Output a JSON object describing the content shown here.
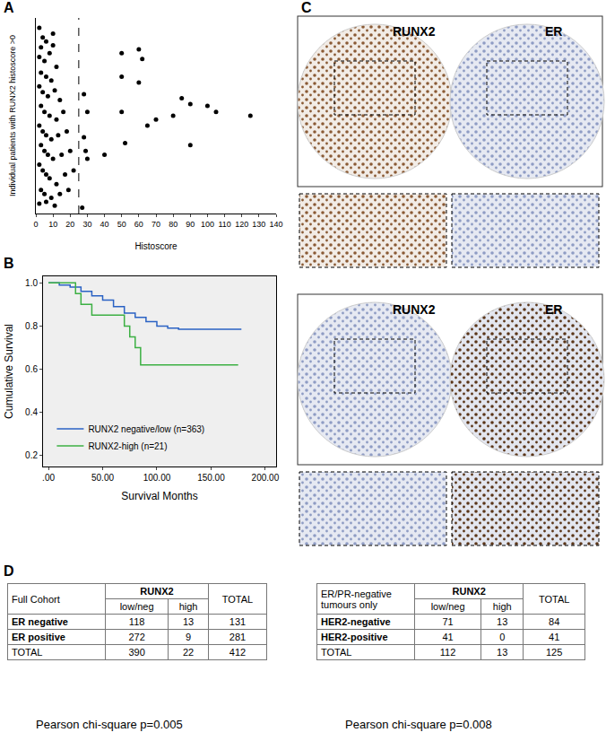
{
  "chart_data": [
    {
      "panel": "A",
      "type": "scatter",
      "x_label": "Histoscore",
      "y_label": "Individual patients with RUNX2 histoscore >0",
      "x": [
        2,
        4,
        3,
        6,
        2,
        5,
        8,
        10,
        10,
        12,
        3,
        6,
        9,
        2,
        4,
        7,
        11,
        14,
        3,
        5,
        8,
        12,
        16,
        2,
        4,
        6,
        9,
        13,
        18,
        3,
        5,
        7,
        10,
        15,
        20,
        2,
        4,
        6,
        8,
        12,
        17,
        22,
        3,
        5,
        9,
        14,
        19,
        2,
        6,
        11,
        27,
        28,
        29,
        30,
        28,
        30,
        40,
        50,
        50,
        50,
        52,
        60,
        60,
        62,
        65,
        70,
        80,
        85,
        90,
        90,
        100,
        105,
        125
      ],
      "y": [
        95,
        90,
        85,
        88,
        80,
        78,
        82,
        92,
        86,
        75,
        72,
        70,
        68,
        65,
        62,
        60,
        63,
        58,
        55,
        52,
        50,
        48,
        52,
        45,
        42,
        40,
        38,
        40,
        42,
        35,
        32,
        30,
        28,
        30,
        32,
        25,
        22,
        20,
        18,
        15,
        20,
        22,
        12,
        10,
        8,
        10,
        12,
        5,
        6,
        4,
        3,
        39,
        32,
        52,
        61,
        28,
        30,
        82,
        70,
        52,
        36,
        84,
        67,
        79,
        45,
        48,
        50,
        59,
        56,
        35,
        55,
        52,
        50
      ],
      "color": "#000000",
      "xlim": [
        0,
        140
      ],
      "xticks": [
        0,
        10,
        20,
        30,
        40,
        50,
        60,
        70,
        80,
        90,
        100,
        110,
        120,
        130,
        140
      ],
      "ylim": [
        0,
        100
      ],
      "tick_labels": "x",
      "cutoff": 25
    },
    {
      "panel": "B",
      "type": "line",
      "x_label": "Survival Months",
      "y_label": "Cumulative Survival",
      "xlim": [
        -5,
        210
      ],
      "xticks": [
        {
          "value": 0,
          "label": ".00"
        },
        {
          "value": 50,
          "label": "50.00"
        },
        {
          "value": 100,
          "label": "100.00"
        },
        {
          "value": 150,
          "label": "150.00"
        },
        {
          "value": 200,
          "label": "200.00"
        }
      ],
      "ylim": [
        0.15,
        1.03
      ],
      "yticks": [
        0.2,
        0.4,
        0.6,
        0.8,
        {
          "value": 1,
          "label": "1.0"
        }
      ],
      "legend": "lower left",
      "series": [
        {
          "name": "RUNX2 negative/low (n=363)",
          "color": "#2a62c4",
          "x": [
            0,
            10,
            20,
            30,
            40,
            50,
            60,
            70,
            80,
            90,
            100,
            110,
            120,
            178
          ],
          "values": [
            1,
            0.99,
            0.98,
            0.96,
            0.94,
            0.92,
            0.89,
            0.86,
            0.84,
            0.82,
            0.8,
            0.79,
            0.785,
            0.785
          ]
        },
        {
          "name": "RUNX2-high (n=21)",
          "color": "#3cb043",
          "x": [
            0,
            25,
            30,
            40,
            55,
            70,
            75,
            80,
            85,
            175
          ],
          "values": [
            1,
            0.95,
            0.9,
            0.85,
            0.85,
            0.8,
            0.75,
            0.7,
            0.62,
            0.62
          ]
        }
      ]
    }
  ],
  "panel_c": {
    "letter": "C",
    "rows": [
      [
        "RUNX2",
        "ER"
      ],
      [
        "RUNX2",
        "ER"
      ]
    ]
  },
  "panel_d": {
    "letter": "D"
  },
  "tables": [
    {
      "title": "Full Cohort",
      "column_group": "RUNX2",
      "columns": [
        "low/neg",
        "high"
      ],
      "total_header": "TOTAL",
      "rows": [
        [
          "ER negative",
          118,
          13,
          131
        ],
        [
          "ER positive",
          272,
          9,
          281
        ],
        [
          "TOTAL",
          390,
          22,
          412
        ]
      ],
      "caption": "Pearson chi-square p=0.005"
    },
    {
      "title": "ER/PR-negative tumours only",
      "column_group": "RUNX2",
      "columns": [
        "low/neg",
        "high"
      ],
      "total_header": "TOTAL",
      "rows": [
        [
          "HER2-negative",
          71,
          13,
          84
        ],
        [
          "HER2-positive",
          41,
          0,
          41
        ],
        [
          "TOTAL",
          112,
          13,
          125
        ]
      ],
      "caption": "Pearson chi-square p=0.008"
    }
  ]
}
